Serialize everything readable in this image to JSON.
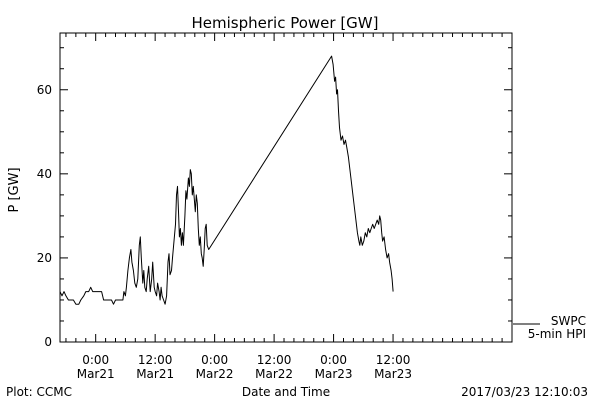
{
  "chart_data": {
    "type": "line",
    "title": "Hemispheric Power [GW]",
    "xlabel": "Date and Time",
    "ylabel": "P [GW]",
    "ylim": [
      0,
      73.5
    ],
    "xlim_hours": [
      -7.2,
      84
    ],
    "y_ticks_major": [
      0,
      20,
      40,
      60
    ],
    "y_minor_step": 5,
    "x_ticks_major": [
      {
        "hour": 0,
        "time": "0:00",
        "date": "Mar21"
      },
      {
        "hour": 12,
        "time": "12:00",
        "date": "Mar21"
      },
      {
        "hour": 24,
        "time": "0:00",
        "date": "Mar22"
      },
      {
        "hour": 36,
        "time": "12:00",
        "date": "Mar22"
      },
      {
        "hour": 48,
        "time": "0:00",
        "date": "Mar23"
      },
      {
        "hour": 60,
        "time": "12:00",
        "date": "Mar23"
      }
    ],
    "x_minor_step_hours": 2,
    "grid": false,
    "legend_lines": [
      "SWPC",
      "5-min HPI"
    ],
    "series": [
      {
        "name": "SWPC 5-min HPI",
        "color": "#000000",
        "points": [
          [
            -7.2,
            12
          ],
          [
            -6.8,
            11
          ],
          [
            -6.4,
            12
          ],
          [
            -6.0,
            11
          ],
          [
            -5.5,
            10
          ],
          [
            -4.5,
            10
          ],
          [
            -4.0,
            9
          ],
          [
            -3.4,
            9
          ],
          [
            -3.0,
            10
          ],
          [
            -2.4,
            11
          ],
          [
            -2.0,
            12
          ],
          [
            -1.4,
            12
          ],
          [
            -1.0,
            13
          ],
          [
            -0.6,
            12
          ],
          [
            0.4,
            12
          ],
          [
            1.2,
            12
          ],
          [
            1.4,
            11
          ],
          [
            1.6,
            10
          ],
          [
            3.2,
            10
          ],
          [
            3.6,
            9
          ],
          [
            4.0,
            10
          ],
          [
            5.5,
            10
          ],
          [
            5.7,
            12
          ],
          [
            6.0,
            11
          ],
          [
            6.2,
            13
          ],
          [
            6.5,
            17
          ],
          [
            6.8,
            20
          ],
          [
            7.1,
            22
          ],
          [
            7.3,
            19
          ],
          [
            7.6,
            17
          ],
          [
            7.9,
            14
          ],
          [
            8.2,
            13
          ],
          [
            8.5,
            15
          ],
          [
            8.8,
            23
          ],
          [
            9.0,
            25
          ],
          [
            9.2,
            20
          ],
          [
            9.5,
            14
          ],
          [
            9.7,
            17
          ],
          [
            9.9,
            13
          ],
          [
            10.2,
            12
          ],
          [
            10.4,
            15
          ],
          [
            10.7,
            18
          ],
          [
            11.0,
            12
          ],
          [
            11.3,
            15
          ],
          [
            11.5,
            19
          ],
          [
            11.8,
            13
          ],
          [
            12.0,
            12
          ],
          [
            12.3,
            11
          ],
          [
            12.5,
            14
          ],
          [
            12.8,
            12
          ],
          [
            13.0,
            10
          ],
          [
            13.2,
            13
          ],
          [
            13.4,
            11
          ],
          [
            13.7,
            10
          ],
          [
            14.0,
            9
          ],
          [
            14.3,
            11
          ],
          [
            14.6,
            19
          ],
          [
            14.8,
            21
          ],
          [
            15.0,
            16
          ],
          [
            15.3,
            17
          ],
          [
            15.5,
            20
          ],
          [
            15.8,
            24
          ],
          [
            16.1,
            28
          ],
          [
            16.3,
            35
          ],
          [
            16.5,
            37
          ],
          [
            16.7,
            31
          ],
          [
            16.9,
            25
          ],
          [
            17.1,
            27
          ],
          [
            17.3,
            23
          ],
          [
            17.5,
            26
          ],
          [
            17.7,
            23
          ],
          [
            18.0,
            30
          ],
          [
            18.2,
            36
          ],
          [
            18.4,
            34
          ],
          [
            18.7,
            39
          ],
          [
            18.9,
            37
          ],
          [
            19.1,
            41
          ],
          [
            19.3,
            40
          ],
          [
            19.5,
            35
          ],
          [
            19.7,
            37
          ],
          [
            19.9,
            34
          ],
          [
            20.1,
            31
          ],
          [
            20.3,
            35
          ],
          [
            20.5,
            33
          ],
          [
            20.7,
            27
          ],
          [
            20.9,
            23
          ],
          [
            21.1,
            25
          ],
          [
            21.3,
            21
          ],
          [
            21.5,
            20
          ],
          [
            21.7,
            18
          ],
          [
            21.9,
            22
          ],
          [
            22.1,
            27
          ],
          [
            22.3,
            28
          ],
          [
            22.5,
            23
          ],
          [
            22.8,
            22
          ],
          [
            47.6,
            68
          ],
          [
            47.9,
            66
          ],
          [
            48.2,
            62
          ],
          [
            48.4,
            63
          ],
          [
            48.6,
            59
          ],
          [
            48.8,
            60
          ],
          [
            49.0,
            55
          ],
          [
            49.2,
            51
          ],
          [
            49.5,
            48
          ],
          [
            49.8,
            49
          ],
          [
            50.1,
            47
          ],
          [
            50.4,
            48
          ],
          [
            50.7,
            46
          ],
          [
            51.0,
            44
          ],
          [
            51.3,
            41
          ],
          [
            51.6,
            38
          ],
          [
            51.9,
            35
          ],
          [
            52.2,
            32
          ],
          [
            52.5,
            29
          ],
          [
            52.8,
            26
          ],
          [
            53.1,
            24
          ],
          [
            53.3,
            23
          ],
          [
            53.5,
            25
          ],
          [
            53.8,
            23
          ],
          [
            54.1,
            24
          ],
          [
            54.4,
            26
          ],
          [
            54.7,
            25
          ],
          [
            55.0,
            27
          ],
          [
            55.3,
            26
          ],
          [
            55.6,
            27
          ],
          [
            55.9,
            28
          ],
          [
            56.2,
            27
          ],
          [
            56.5,
            28
          ],
          [
            56.8,
            29
          ],
          [
            57.1,
            28
          ],
          [
            57.3,
            30
          ],
          [
            57.5,
            29
          ],
          [
            57.7,
            26
          ],
          [
            57.9,
            24
          ],
          [
            58.2,
            25
          ],
          [
            58.5,
            22
          ],
          [
            58.8,
            20
          ],
          [
            59.1,
            21
          ],
          [
            59.3,
            19
          ],
          [
            59.6,
            17
          ],
          [
            59.8,
            15
          ],
          [
            60.0,
            12
          ]
        ]
      }
    ]
  },
  "footer": {
    "left": "Plot: CCMC",
    "center": "Date and Time",
    "right": "2017/03/23 12:10:03"
  }
}
